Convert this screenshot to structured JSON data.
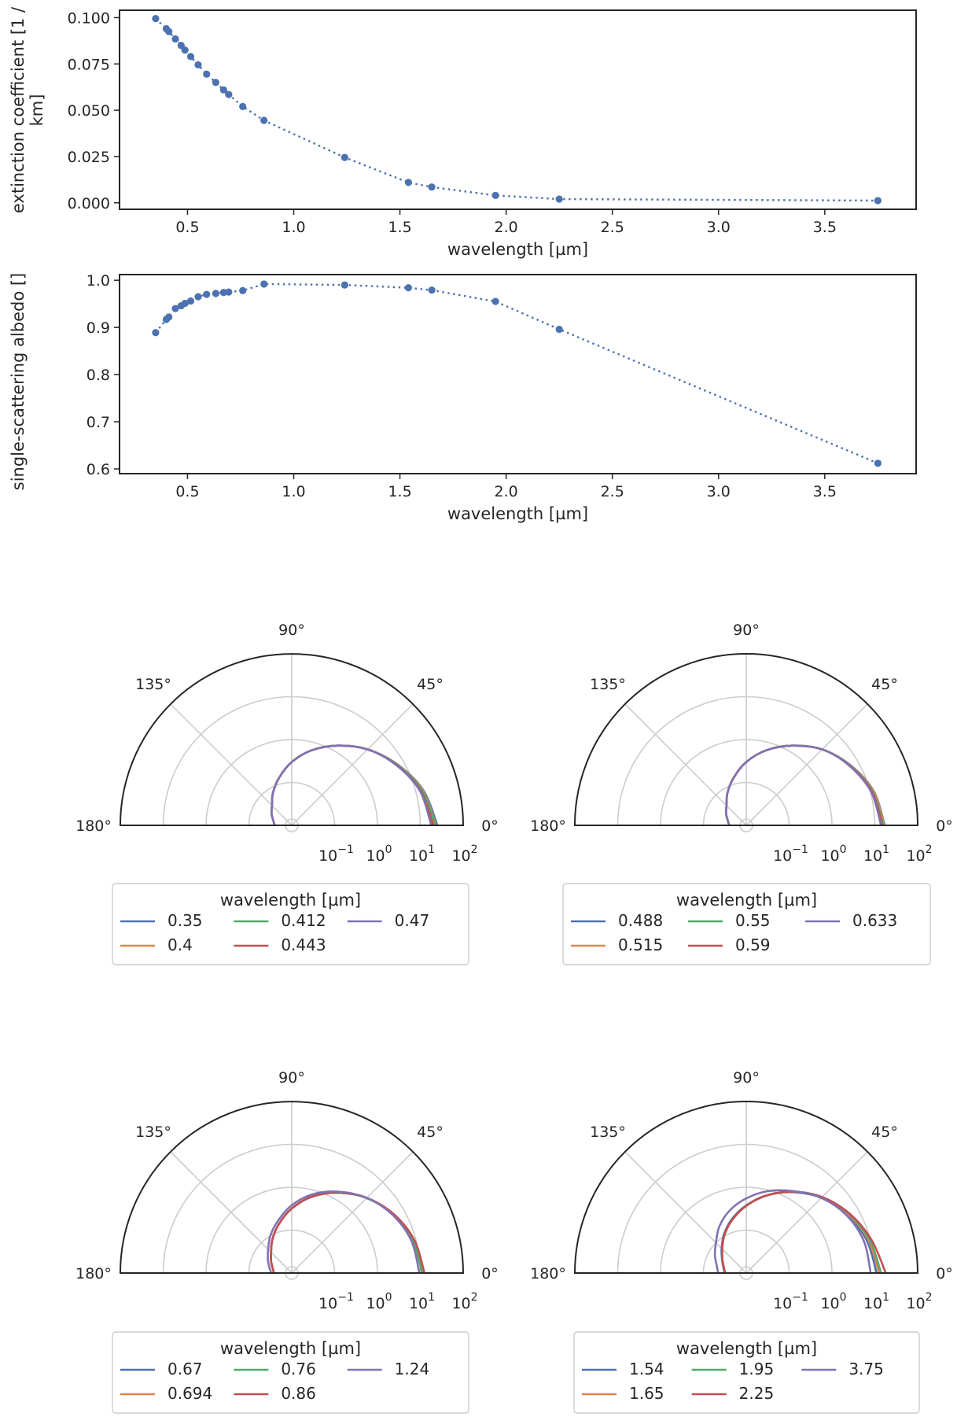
{
  "chart_data": [
    {
      "type": "line",
      "xlabel": "wavelength [µm]",
      "ylabel": "extinction coefficient [1 / km]",
      "ylabel_lines": [
        "extinction coefficient [1 /",
        "km]"
      ],
      "xlim": [
        0.18,
        3.93
      ],
      "ylim": [
        -0.0035,
        0.104
      ],
      "xticks": [
        0.5,
        1.0,
        1.5,
        2.0,
        2.5,
        3.0,
        3.5
      ],
      "xtick_labels": [
        "0.5",
        "1.0",
        "1.5",
        "2.0",
        "2.5",
        "3.0",
        "3.5"
      ],
      "yticks": [
        0.0,
        0.025,
        0.05,
        0.075,
        0.1
      ],
      "ytick_labels": [
        "0.000",
        "0.025",
        "0.050",
        "0.075",
        "0.100"
      ],
      "grid": false,
      "line_style": "dotted",
      "marker": "circle",
      "color": "#4c72b0",
      "x": [
        0.35,
        0.4,
        0.412,
        0.443,
        0.47,
        0.488,
        0.515,
        0.55,
        0.59,
        0.633,
        0.67,
        0.694,
        0.76,
        0.86,
        1.24,
        1.54,
        1.65,
        1.95,
        2.25,
        3.75
      ],
      "y": [
        0.0995,
        0.094,
        0.0925,
        0.0885,
        0.085,
        0.0825,
        0.079,
        0.0745,
        0.0695,
        0.065,
        0.061,
        0.0585,
        0.052,
        0.0445,
        0.0245,
        0.011,
        0.0085,
        0.004,
        0.002,
        0.0012
      ]
    },
    {
      "type": "line",
      "xlabel": "wavelength [µm]",
      "ylabel": "single-scattering albedo []",
      "xlim": [
        0.18,
        3.93
      ],
      "ylim": [
        0.59,
        1.012
      ],
      "xticks": [
        0.5,
        1.0,
        1.5,
        2.0,
        2.5,
        3.0,
        3.5
      ],
      "xtick_labels": [
        "0.5",
        "1.0",
        "1.5",
        "2.0",
        "2.5",
        "3.0",
        "3.5"
      ],
      "yticks": [
        0.6,
        0.7,
        0.8,
        0.9,
        1.0
      ],
      "ytick_labels": [
        "0.6",
        "0.7",
        "0.8",
        "0.9",
        "1.0"
      ],
      "grid": false,
      "line_style": "dotted",
      "marker": "circle",
      "color": "#4c72b0",
      "x": [
        0.35,
        0.4,
        0.412,
        0.443,
        0.47,
        0.488,
        0.515,
        0.55,
        0.59,
        0.633,
        0.67,
        0.694,
        0.76,
        0.86,
        1.24,
        1.54,
        1.65,
        1.95,
        2.25,
        3.75
      ],
      "y": [
        0.889,
        0.917,
        0.922,
        0.94,
        0.946,
        0.951,
        0.956,
        0.965,
        0.97,
        0.972,
        0.974,
        0.975,
        0.978,
        0.992,
        0.99,
        0.984,
        0.979,
        0.955,
        0.896,
        0.612
      ]
    },
    {
      "type": "polar",
      "theta_range_deg": [
        0,
        180
      ],
      "radial_scale": "log",
      "rlim": [
        0.01,
        100
      ],
      "theta_tick_labels": [
        "0°",
        "45°",
        "90°",
        "135°",
        "180°"
      ],
      "radial_tick_labels": [
        "10",
        "10",
        "10",
        "10"
      ],
      "radial_tick_exponents": [
        "−1",
        "0",
        "1",
        "2"
      ],
      "legend_title": "wavelength [µm]",
      "legend_placement": "below",
      "series": [
        {
          "name": "0.35",
          "color": "#4c72b0",
          "theta_deg": [
            0,
            15,
            30,
            45,
            60,
            75,
            90,
            105,
            120,
            135,
            150,
            165,
            180
          ],
          "r": [
            25.0,
            15.0,
            7.0,
            3.2,
            1.4,
            0.65,
            0.3,
            0.14,
            0.075,
            0.045,
            0.035,
            0.028,
            0.025
          ]
        },
        {
          "name": "0.4",
          "color": "#dd8452",
          "theta_deg": [
            0,
            15,
            30,
            45,
            60,
            75,
            90,
            105,
            120,
            135,
            150,
            165,
            180
          ],
          "r": [
            23.0,
            14.5,
            6.9,
            3.2,
            1.4,
            0.65,
            0.3,
            0.14,
            0.075,
            0.045,
            0.035,
            0.028,
            0.025
          ]
        },
        {
          "name": "0.412",
          "color": "#55a868",
          "theta_deg": [
            0,
            15,
            30,
            45,
            60,
            75,
            90,
            105,
            120,
            135,
            150,
            165,
            180
          ],
          "r": [
            22.0,
            14.0,
            6.8,
            3.2,
            1.4,
            0.65,
            0.3,
            0.14,
            0.075,
            0.045,
            0.035,
            0.028,
            0.025
          ]
        },
        {
          "name": "0.443",
          "color": "#c44e52",
          "theta_deg": [
            0,
            15,
            30,
            45,
            60,
            75,
            90,
            105,
            120,
            135,
            150,
            165,
            180
          ],
          "r": [
            20.0,
            13.0,
            6.6,
            3.2,
            1.4,
            0.65,
            0.3,
            0.14,
            0.075,
            0.045,
            0.035,
            0.028,
            0.025
          ]
        },
        {
          "name": "0.47",
          "color": "#8172b3",
          "theta_deg": [
            0,
            15,
            30,
            45,
            60,
            75,
            90,
            105,
            120,
            135,
            150,
            165,
            180
          ],
          "r": [
            18.0,
            12.5,
            6.5,
            3.2,
            1.4,
            0.65,
            0.3,
            0.14,
            0.075,
            0.045,
            0.035,
            0.028,
            0.025
          ]
        }
      ]
    },
    {
      "type": "polar",
      "theta_range_deg": [
        0,
        180
      ],
      "radial_scale": "log",
      "rlim": [
        0.01,
        100
      ],
      "theta_tick_labels": [
        "0°",
        "45°",
        "90°",
        "135°",
        "180°"
      ],
      "radial_tick_labels": [
        "10",
        "10",
        "10",
        "10"
      ],
      "radial_tick_exponents": [
        "−1",
        "0",
        "1",
        "2"
      ],
      "legend_title": "wavelength [µm]",
      "legend_placement": "below",
      "series": [
        {
          "name": "0.488",
          "color": "#4c72b0",
          "theta_deg": [
            0,
            15,
            30,
            45,
            60,
            75,
            90,
            105,
            120,
            135,
            150,
            165,
            180
          ],
          "r": [
            17.0,
            12.0,
            6.4,
            3.2,
            1.4,
            0.65,
            0.3,
            0.14,
            0.075,
            0.045,
            0.035,
            0.028,
            0.025
          ]
        },
        {
          "name": "0.515",
          "color": "#dd8452",
          "theta_deg": [
            0,
            15,
            30,
            45,
            60,
            75,
            90,
            105,
            120,
            135,
            150,
            165,
            180
          ],
          "r": [
            16.5,
            11.8,
            6.3,
            3.2,
            1.4,
            0.65,
            0.3,
            0.14,
            0.075,
            0.045,
            0.035,
            0.028,
            0.025
          ]
        },
        {
          "name": "0.55",
          "color": "#55a868",
          "theta_deg": [
            0,
            15,
            30,
            45,
            60,
            75,
            90,
            105,
            120,
            135,
            150,
            165,
            180
          ],
          "r": [
            15.5,
            11.2,
            6.2,
            3.2,
            1.4,
            0.65,
            0.3,
            0.14,
            0.075,
            0.045,
            0.035,
            0.028,
            0.025
          ]
        },
        {
          "name": "0.59",
          "color": "#c44e52",
          "theta_deg": [
            0,
            15,
            30,
            45,
            60,
            75,
            90,
            105,
            120,
            135,
            150,
            165,
            180
          ],
          "r": [
            14.8,
            10.8,
            6.1,
            3.2,
            1.4,
            0.65,
            0.3,
            0.14,
            0.075,
            0.045,
            0.035,
            0.028,
            0.025
          ]
        },
        {
          "name": "0.633",
          "color": "#8172b3",
          "theta_deg": [
            0,
            15,
            30,
            45,
            60,
            75,
            90,
            105,
            120,
            135,
            150,
            165,
            180
          ],
          "r": [
            14.0,
            10.4,
            6.0,
            3.2,
            1.4,
            0.65,
            0.3,
            0.14,
            0.075,
            0.045,
            0.035,
            0.028,
            0.025
          ]
        }
      ]
    },
    {
      "type": "polar",
      "theta_range_deg": [
        0,
        180
      ],
      "radial_scale": "log",
      "rlim": [
        0.01,
        100
      ],
      "theta_tick_labels": [
        "0°",
        "45°",
        "90°",
        "135°",
        "180°"
      ],
      "radial_tick_labels": [
        "10",
        "10",
        "10",
        "10"
      ],
      "radial_tick_exponents": [
        "−1",
        "0",
        "1",
        "2"
      ],
      "legend_title": "wavelength [µm]",
      "legend_placement": "below",
      "series": [
        {
          "name": "0.67",
          "color": "#4c72b0",
          "theta_deg": [
            0,
            15,
            30,
            45,
            60,
            75,
            90,
            105,
            120,
            135,
            150,
            165,
            180
          ],
          "r": [
            12.0,
            9.0,
            5.5,
            3.0,
            1.45,
            0.7,
            0.32,
            0.15,
            0.08,
            0.048,
            0.036,
            0.029,
            0.026
          ]
        },
        {
          "name": "0.694",
          "color": "#dd8452",
          "theta_deg": [
            0,
            15,
            30,
            45,
            60,
            75,
            90,
            105,
            120,
            135,
            150,
            165,
            180
          ],
          "r": [
            11.5,
            8.7,
            5.4,
            3.0,
            1.45,
            0.7,
            0.32,
            0.15,
            0.08,
            0.048,
            0.036,
            0.029,
            0.026
          ]
        },
        {
          "name": "0.76",
          "color": "#55a868",
          "theta_deg": [
            0,
            15,
            30,
            45,
            60,
            75,
            90,
            105,
            120,
            135,
            150,
            165,
            180
          ],
          "r": [
            11.0,
            8.4,
            5.3,
            2.95,
            1.45,
            0.7,
            0.32,
            0.15,
            0.08,
            0.048,
            0.036,
            0.029,
            0.026
          ]
        },
        {
          "name": "0.86",
          "color": "#c44e52",
          "theta_deg": [
            0,
            15,
            30,
            45,
            60,
            75,
            90,
            105,
            120,
            135,
            150,
            165,
            180
          ],
          "r": [
            12.5,
            9.2,
            5.6,
            3.0,
            1.45,
            0.7,
            0.32,
            0.15,
            0.08,
            0.048,
            0.036,
            0.029,
            0.026
          ]
        },
        {
          "name": "1.24",
          "color": "#8172b3",
          "theta_deg": [
            0,
            15,
            30,
            45,
            60,
            75,
            90,
            105,
            120,
            135,
            150,
            165,
            180
          ],
          "r": [
            9.5,
            7.8,
            5.2,
            3.0,
            1.55,
            0.8,
            0.38,
            0.18,
            0.1,
            0.06,
            0.044,
            0.035,
            0.03
          ]
        }
      ]
    },
    {
      "type": "polar",
      "theta_range_deg": [
        0,
        180
      ],
      "radial_scale": "log",
      "rlim": [
        0.01,
        100
      ],
      "theta_tick_labels": [
        "0°",
        "45°",
        "90°",
        "135°",
        "180°"
      ],
      "radial_tick_labels": [
        "10",
        "10",
        "10",
        "10"
      ],
      "radial_tick_exponents": [
        "−1",
        "0",
        "1",
        "2"
      ],
      "legend_title": "wavelength [µm]",
      "legend_placement": "below",
      "series": [
        {
          "name": "1.54",
          "color": "#4c72b0",
          "theta_deg": [
            0,
            15,
            30,
            45,
            60,
            75,
            90,
            105,
            120,
            135,
            150,
            165,
            180
          ],
          "r": [
            11.0,
            8.2,
            5.2,
            3.0,
            1.5,
            0.75,
            0.38,
            0.2,
            0.11,
            0.065,
            0.045,
            0.036,
            0.032
          ]
        },
        {
          "name": "1.65",
          "color": "#dd8452",
          "theta_deg": [
            0,
            15,
            30,
            45,
            60,
            75,
            90,
            105,
            120,
            135,
            150,
            165,
            180
          ],
          "r": [
            12.5,
            9.0,
            5.6,
            3.1,
            1.55,
            0.75,
            0.37,
            0.19,
            0.105,
            0.062,
            0.044,
            0.035,
            0.031
          ]
        },
        {
          "name": "1.95",
          "color": "#55a868",
          "theta_deg": [
            0,
            15,
            30,
            45,
            60,
            75,
            90,
            105,
            120,
            135,
            150,
            165,
            180
          ],
          "r": [
            14.0,
            9.6,
            5.8,
            3.2,
            1.55,
            0.75,
            0.37,
            0.19,
            0.105,
            0.062,
            0.044,
            0.035,
            0.031
          ]
        },
        {
          "name": "2.25",
          "color": "#c44e52",
          "theta_deg": [
            0,
            15,
            30,
            45,
            60,
            75,
            90,
            105,
            120,
            135,
            150,
            165,
            180
          ],
          "r": [
            18.0,
            10.5,
            6.0,
            3.2,
            1.55,
            0.75,
            0.37,
            0.19,
            0.105,
            0.062,
            0.044,
            0.035,
            0.031
          ]
        },
        {
          "name": "3.75",
          "color": "#8172b3",
          "theta_deg": [
            0,
            15,
            30,
            45,
            60,
            75,
            90,
            105,
            120,
            135,
            150,
            165,
            180
          ],
          "r": [
            8.0,
            7.0,
            5.0,
            3.0,
            1.6,
            0.95,
            0.55,
            0.32,
            0.18,
            0.1,
            0.07,
            0.052,
            0.045
          ]
        }
      ]
    }
  ]
}
